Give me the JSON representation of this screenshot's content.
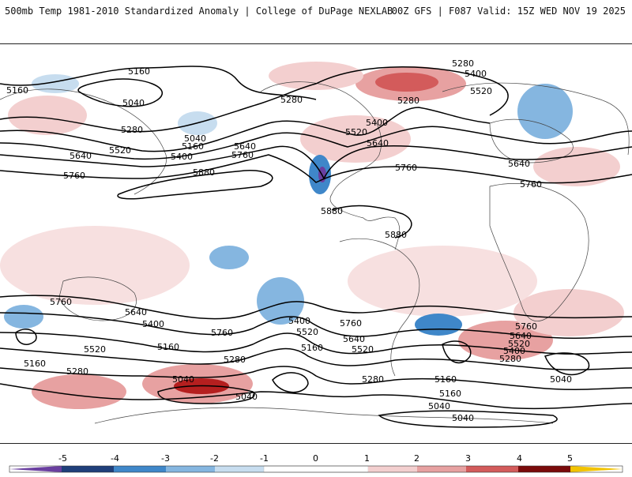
{
  "header": {
    "title": "500mb Temp 1981-2010 Standardized Anomaly | College of DuPage NEXLAB",
    "run_info": "00Z GFS | F087 Valid: 15Z WED NOV 19 2025"
  },
  "map": {
    "contour_labels": [
      "5160",
      "5040",
      "5280",
      "5400",
      "5520",
      "5640",
      "5760",
      "5880"
    ]
  },
  "colorbar": {
    "ticks": [
      "-5",
      "-4",
      "-3",
      "-2",
      "-1",
      "0",
      "1",
      "2",
      "3",
      "4",
      "5"
    ],
    "colors": {
      "neg5": "#6a3fa0",
      "neg4": "#1f3f7a",
      "neg3": "#3f87c9",
      "neg2": "#85b6e0",
      "neg1": "#c7ddef",
      "pos1": "#f3cfcf",
      "pos2": "#e7a1a1",
      "pos3": "#d35b5b",
      "pos4": "#b51f1f",
      "pos5": "#7a0b0b",
      "extreme": "#f2c300"
    }
  }
}
